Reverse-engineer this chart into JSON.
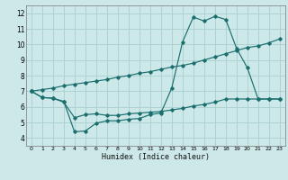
{
  "bg_color": "#cde8e8",
  "grid_color": "#aacece",
  "line_color": "#1a6e6e",
  "xlabel": "Humidex (Indice chaleur)",
  "xlim": [
    -0.5,
    23.5
  ],
  "ylim": [
    3.5,
    12.5
  ],
  "yticks": [
    4,
    5,
    6,
    7,
    8,
    9,
    10,
    11,
    12
  ],
  "xticks": [
    0,
    1,
    2,
    3,
    4,
    5,
    6,
    7,
    8,
    9,
    10,
    11,
    12,
    13,
    14,
    15,
    16,
    17,
    18,
    19,
    20,
    21,
    22,
    23
  ],
  "line1_x": [
    0,
    1,
    2,
    3,
    4,
    5,
    6,
    7,
    8,
    9,
    10,
    11,
    12,
    13,
    14,
    15,
    16,
    17,
    18,
    19,
    20,
    21,
    22,
    23
  ],
  "line1_y": [
    7.0,
    6.6,
    6.55,
    6.35,
    4.4,
    4.45,
    4.95,
    5.1,
    5.1,
    5.2,
    5.25,
    5.5,
    5.6,
    7.2,
    10.15,
    11.75,
    11.5,
    11.8,
    11.6,
    9.75,
    8.5,
    6.5,
    6.5,
    6.5
  ],
  "line2_x": [
    0,
    1,
    2,
    3,
    4,
    5,
    6,
    7,
    8,
    9,
    10,
    11,
    12,
    13,
    14,
    15,
    16,
    17,
    18,
    19,
    20,
    21,
    22,
    23
  ],
  "line2_y": [
    7.0,
    7.1,
    7.2,
    7.35,
    7.45,
    7.55,
    7.65,
    7.75,
    7.9,
    8.0,
    8.15,
    8.25,
    8.4,
    8.55,
    8.65,
    8.8,
    9.0,
    9.2,
    9.4,
    9.6,
    9.8,
    9.9,
    10.1,
    10.35
  ],
  "line3_x": [
    0,
    1,
    2,
    3,
    4,
    5,
    6,
    7,
    8,
    9,
    10,
    11,
    12,
    13,
    14,
    15,
    16,
    17,
    18,
    19,
    20,
    21,
    22,
    23
  ],
  "line3_y": [
    7.0,
    6.6,
    6.55,
    6.3,
    5.3,
    5.5,
    5.55,
    5.45,
    5.45,
    5.55,
    5.6,
    5.65,
    5.7,
    5.8,
    5.9,
    6.05,
    6.15,
    6.3,
    6.5,
    6.5,
    6.5,
    6.5,
    6.5,
    6.5
  ]
}
